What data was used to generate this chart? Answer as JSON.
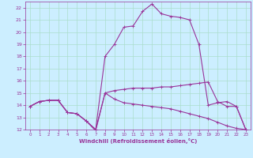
{
  "title": "",
  "xlabel": "Windchill (Refroidissement éolien,°C)",
  "ylabel": "",
  "bg_color": "#cceeff",
  "line_color": "#993399",
  "grid_color": "#aaddcc",
  "xlim": [
    -0.5,
    23.5
  ],
  "ylim": [
    12,
    22.5
  ],
  "xticks": [
    0,
    1,
    2,
    3,
    4,
    5,
    6,
    7,
    8,
    9,
    10,
    11,
    12,
    13,
    14,
    15,
    16,
    17,
    18,
    19,
    20,
    21,
    22,
    23
  ],
  "yticks": [
    12,
    13,
    14,
    15,
    16,
    17,
    18,
    19,
    20,
    21,
    22
  ],
  "series": [
    {
      "x": [
        0,
        1,
        2,
        3,
        4,
        5,
        6,
        7,
        8,
        9,
        10,
        11,
        12,
        13,
        14,
        15,
        16,
        17,
        18,
        19,
        20,
        21,
        22,
        23
      ],
      "y": [
        13.9,
        14.3,
        14.4,
        14.4,
        13.4,
        13.3,
        12.7,
        11.9,
        15.0,
        15.2,
        15.3,
        15.4,
        15.4,
        15.4,
        15.5,
        15.5,
        15.6,
        15.7,
        15.8,
        15.9,
        14.3,
        13.9,
        13.9,
        12.0
      ]
    },
    {
      "x": [
        0,
        1,
        2,
        3,
        4,
        5,
        6,
        7,
        8,
        9,
        10,
        11,
        12,
        13,
        14,
        15,
        16,
        17,
        18,
        19,
        20,
        21,
        22,
        23
      ],
      "y": [
        13.9,
        14.3,
        14.4,
        14.4,
        13.4,
        13.3,
        12.7,
        12.0,
        18.0,
        19.0,
        20.4,
        20.5,
        21.7,
        22.3,
        21.5,
        21.3,
        21.2,
        21.0,
        19.0,
        14.0,
        14.2,
        14.3,
        13.9,
        12.0
      ]
    },
    {
      "x": [
        0,
        1,
        2,
        3,
        4,
        5,
        6,
        7,
        8,
        9,
        10,
        11,
        12,
        13,
        14,
        15,
        16,
        17,
        18,
        19,
        20,
        21,
        22,
        23
      ],
      "y": [
        13.9,
        14.3,
        14.4,
        14.4,
        13.4,
        13.3,
        12.7,
        12.0,
        15.0,
        14.5,
        14.2,
        14.1,
        14.0,
        13.9,
        13.8,
        13.7,
        13.5,
        13.3,
        13.1,
        12.9,
        12.6,
        12.3,
        12.1,
        12.0
      ]
    }
  ]
}
